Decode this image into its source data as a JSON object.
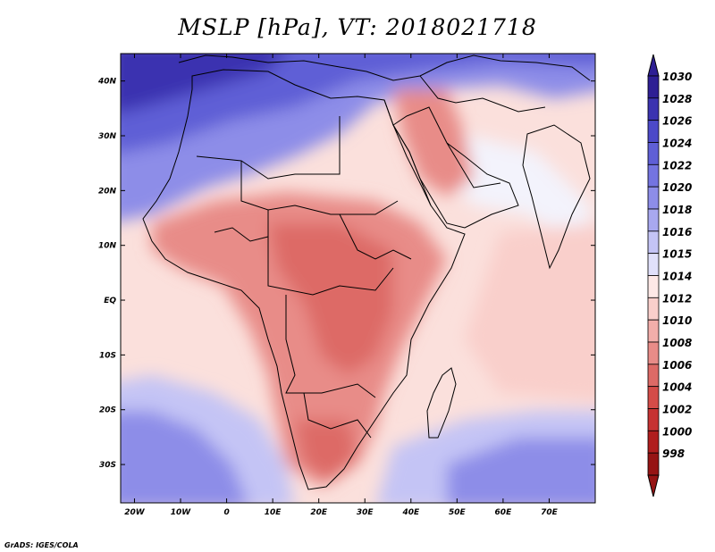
{
  "title": "MSLP [hPa], VT: 2018021718",
  "credit": "GrADS: IGES/COLA",
  "chart_data": {
    "type": "heatmap",
    "field": "Mean sea level pressure",
    "units": "hPa",
    "valid_time": "2018021718",
    "lon_range": [
      -23,
      80
    ],
    "lat_range": [
      -37,
      45
    ],
    "x_ticks": [
      "20W",
      "10W",
      "0",
      "10E",
      "20E",
      "30E",
      "40E",
      "50E",
      "60E",
      "70E"
    ],
    "x_tick_values": [
      -20,
      -10,
      0,
      10,
      20,
      30,
      40,
      50,
      60,
      70
    ],
    "y_ticks": [
      "40N",
      "30N",
      "20N",
      "10N",
      "EQ",
      "10S",
      "20S",
      "30S"
    ],
    "y_tick_values": [
      40,
      30,
      20,
      10,
      0,
      -10,
      -20,
      -30
    ],
    "colorbar_labels": [
      "1030",
      "1028",
      "1026",
      "1024",
      "1022",
      "1020",
      "1018",
      "1016",
      "1015",
      "1014",
      "1012",
      "1010",
      "1008",
      "1006",
      "1004",
      "1002",
      "1000",
      "998"
    ],
    "colorbar_colors": [
      "#2e1f94",
      "#3b33b0",
      "#4c49c8",
      "#5f5fd6",
      "#7474e0",
      "#8d8de8",
      "#a8a8ef",
      "#c4c4f5",
      "#e0e0fa",
      "#fde8e6",
      "#f9cfcb",
      "#f2aeaa",
      "#e88c88",
      "#dd6a66",
      "#d44c48",
      "#c63232",
      "#b01e1e",
      "#961414"
    ]
  }
}
